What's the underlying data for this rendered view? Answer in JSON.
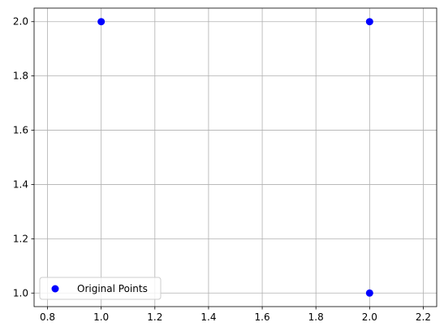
{
  "chart_data": {
    "type": "scatter",
    "title": "",
    "xlabel": "",
    "ylabel": "",
    "xlim": [
      0.75,
      2.25
    ],
    "ylim": [
      0.95,
      2.05
    ],
    "xticks": [
      "0.8",
      "1.0",
      "1.2",
      "1.4",
      "1.6",
      "1.8",
      "2.0",
      "2.2"
    ],
    "yticks": [
      "1.0",
      "1.2",
      "1.4",
      "1.6",
      "1.8",
      "2.0"
    ],
    "grid": true,
    "legend_position": "lower-left",
    "series": [
      {
        "name": "Original Points",
        "color": "#0000ff",
        "x": [
          1.0,
          2.0,
          2.0
        ],
        "y": [
          2.0,
          2.0,
          1.0
        ]
      }
    ]
  }
}
